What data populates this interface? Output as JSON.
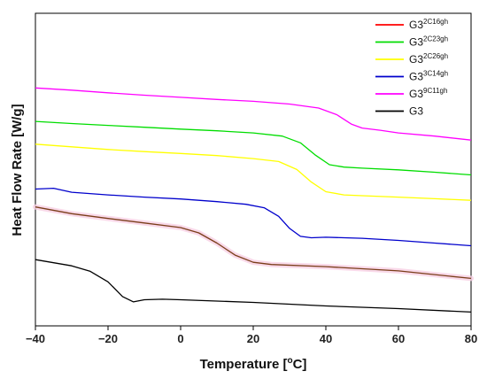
{
  "chart_data": {
    "type": "line",
    "xlabel": "Temperature [°C]",
    "ylabel": "Heat Flow Rate [W/g]",
    "xlim": [
      -40,
      80
    ],
    "ylim": [
      0,
      10
    ],
    "xticks": [
      -40,
      -20,
      0,
      20,
      40,
      60,
      80
    ],
    "xtick_labels": [
      "−40",
      "−20",
      "0",
      "20",
      "40",
      "60",
      "80"
    ],
    "y_ticks_shown": false,
    "grid": false,
    "legend_position": "top-right",
    "series": [
      {
        "name": "G3",
        "name_sup": "2C16gh",
        "color": "#ff0000",
        "halo": true,
        "points": [
          [
            -40,
            3.85
          ],
          [
            -30,
            3.6
          ],
          [
            -20,
            3.42
          ],
          [
            -10,
            3.25
          ],
          [
            0,
            3.08
          ],
          [
            5,
            2.88
          ],
          [
            10,
            2.5
          ],
          [
            15,
            2.05
          ],
          [
            20,
            1.78
          ],
          [
            25,
            1.7
          ],
          [
            40,
            1.62
          ],
          [
            60,
            1.46
          ],
          [
            80,
            1.18
          ]
        ]
      },
      {
        "name": "G3",
        "name_sup": "2C23gh",
        "color": "#00dd00",
        "points": [
          [
            -40,
            7.05
          ],
          [
            -30,
            6.97
          ],
          [
            -20,
            6.9
          ],
          [
            -10,
            6.83
          ],
          [
            0,
            6.76
          ],
          [
            10,
            6.7
          ],
          [
            20,
            6.62
          ],
          [
            28,
            6.5
          ],
          [
            33,
            6.25
          ],
          [
            37,
            5.8
          ],
          [
            41,
            5.43
          ],
          [
            45,
            5.34
          ],
          [
            50,
            5.3
          ],
          [
            60,
            5.24
          ],
          [
            70,
            5.15
          ],
          [
            80,
            5.05
          ]
        ]
      },
      {
        "name": "G3",
        "name_sup": "2C26gh",
        "color": "#ffff00",
        "points": [
          [
            -40,
            6.2
          ],
          [
            -30,
            6.1
          ],
          [
            -20,
            6.0
          ],
          [
            -10,
            5.92
          ],
          [
            0,
            5.85
          ],
          [
            10,
            5.77
          ],
          [
            20,
            5.66
          ],
          [
            27,
            5.55
          ],
          [
            32,
            5.25
          ],
          [
            36,
            4.78
          ],
          [
            40,
            4.42
          ],
          [
            45,
            4.3
          ],
          [
            50,
            4.27
          ],
          [
            60,
            4.22
          ],
          [
            70,
            4.16
          ],
          [
            80,
            4.1
          ]
        ]
      },
      {
        "name": "G3",
        "name_sup": "3C14gh",
        "color": "#0000cc",
        "points": [
          [
            -40,
            4.52
          ],
          [
            -35,
            4.55
          ],
          [
            -30,
            4.4
          ],
          [
            -20,
            4.3
          ],
          [
            -10,
            4.22
          ],
          [
            0,
            4.15
          ],
          [
            10,
            4.05
          ],
          [
            18,
            3.95
          ],
          [
            23,
            3.82
          ],
          [
            27,
            3.5
          ],
          [
            30,
            3.05
          ],
          [
            33,
            2.75
          ],
          [
            36,
            2.7
          ],
          [
            40,
            2.72
          ],
          [
            50,
            2.68
          ],
          [
            60,
            2.6
          ],
          [
            70,
            2.5
          ],
          [
            80,
            2.4
          ]
        ]
      },
      {
        "name": "G3",
        "name_sup": "9C11gh",
        "color": "#ff00ff",
        "points": [
          [
            -40,
            8.3
          ],
          [
            -30,
            8.22
          ],
          [
            -20,
            8.12
          ],
          [
            -10,
            8.03
          ],
          [
            0,
            7.95
          ],
          [
            10,
            7.87
          ],
          [
            20,
            7.8
          ],
          [
            30,
            7.7
          ],
          [
            38,
            7.55
          ],
          [
            43,
            7.3
          ],
          [
            47,
            6.95
          ],
          [
            50,
            6.8
          ],
          [
            55,
            6.72
          ],
          [
            60,
            6.62
          ],
          [
            70,
            6.5
          ],
          [
            80,
            6.35
          ]
        ]
      },
      {
        "name": "G3",
        "name_sup": "",
        "color": "#000000",
        "points": [
          [
            -40,
            1.88
          ],
          [
            -30,
            1.65
          ],
          [
            -25,
            1.45
          ],
          [
            -20,
            1.05
          ],
          [
            -16,
            0.5
          ],
          [
            -13,
            0.3
          ],
          [
            -10,
            0.38
          ],
          [
            -5,
            0.4
          ],
          [
            0,
            0.38
          ],
          [
            20,
            0.28
          ],
          [
            40,
            0.15
          ],
          [
            60,
            0.05
          ],
          [
            80,
            -0.08
          ]
        ]
      }
    ]
  }
}
